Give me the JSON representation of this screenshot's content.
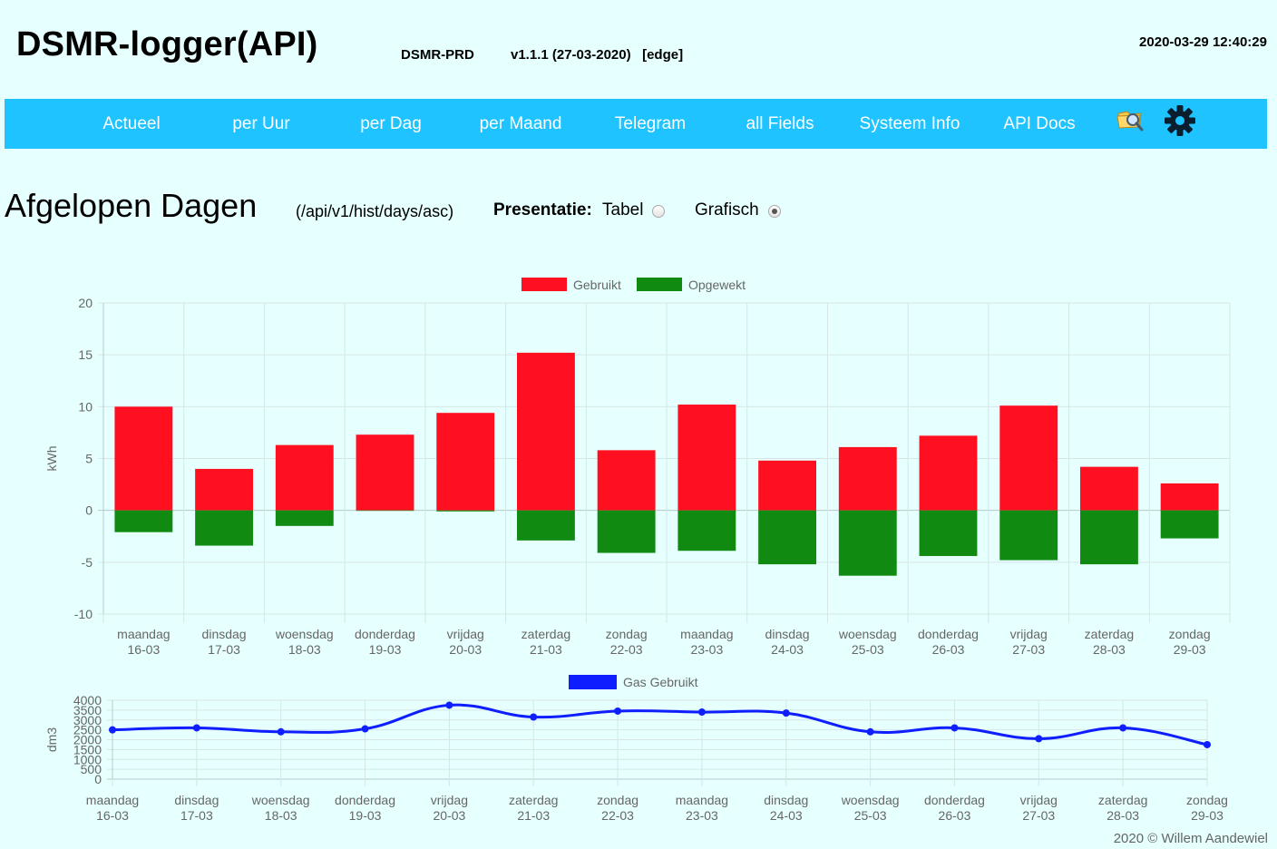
{
  "header": {
    "title": "DSMR-logger(API)",
    "hostname": "DSMR-PRD",
    "version": "v1.1.1 (27-03-2020)   [edge]",
    "clock": "2020-03-29 12:40:29"
  },
  "nav": {
    "items": [
      "Actueel",
      "per Uur",
      "per Dag",
      "per Maand",
      "Telegram",
      "all Fields",
      "Systeem Info",
      "API Docs"
    ],
    "icons": [
      "file-search-icon",
      "gear-icon"
    ]
  },
  "page": {
    "title": "Afgelopen Dagen",
    "endpoint": "(/api/v1/hist/days/asc)",
    "presentation_label": "Presentatie:",
    "options": [
      {
        "label": "Tabel",
        "selected": false
      },
      {
        "label": "Grafisch",
        "selected": true
      }
    ]
  },
  "chart_data": [
    {
      "type": "bar",
      "ylabel": "kWh",
      "ylim": [
        -10,
        20
      ],
      "yticks": [
        20,
        15,
        10,
        5,
        0,
        -5,
        -10
      ],
      "grid": true,
      "legend": "top-center",
      "categories": [
        [
          "maandag",
          "16-03"
        ],
        [
          "dinsdag",
          "17-03"
        ],
        [
          "woensdag",
          "18-03"
        ],
        [
          "donderdag",
          "19-03"
        ],
        [
          "vrijdag",
          "20-03"
        ],
        [
          "zaterdag",
          "21-03"
        ],
        [
          "zondag",
          "22-03"
        ],
        [
          "maandag",
          "23-03"
        ],
        [
          "dinsdag",
          "24-03"
        ],
        [
          "woensdag",
          "25-03"
        ],
        [
          "donderdag",
          "26-03"
        ],
        [
          "vrijdag",
          "27-03"
        ],
        [
          "zaterdag",
          "28-03"
        ],
        [
          "zondag",
          "29-03"
        ]
      ],
      "series": [
        {
          "name": "Gebruikt",
          "color": "#ff1021",
          "values": [
            10.0,
            4.0,
            6.3,
            7.3,
            9.4,
            15.2,
            5.8,
            10.2,
            4.8,
            6.1,
            7.2,
            10.1,
            4.2,
            2.6
          ]
        },
        {
          "name": "Opgewekt",
          "color": "#108a10",
          "values": [
            -2.1,
            -3.4,
            -1.5,
            0,
            -0.1,
            -2.9,
            -4.1,
            -3.9,
            -5.2,
            -6.3,
            -4.4,
            -4.8,
            -5.2,
            -2.7
          ]
        }
      ]
    },
    {
      "type": "line",
      "ylabel": "dm3",
      "ylim": [
        0,
        4000
      ],
      "yticks": [
        4000,
        3500,
        3000,
        2500,
        2000,
        1500,
        1000,
        500,
        0
      ],
      "grid": true,
      "legend": "top-center",
      "categories": [
        [
          "maandag",
          "16-03"
        ],
        [
          "dinsdag",
          "17-03"
        ],
        [
          "woensdag",
          "18-03"
        ],
        [
          "donderdag",
          "19-03"
        ],
        [
          "vrijdag",
          "20-03"
        ],
        [
          "zaterdag",
          "21-03"
        ],
        [
          "zondag",
          "22-03"
        ],
        [
          "maandag",
          "23-03"
        ],
        [
          "dinsdag",
          "24-03"
        ],
        [
          "woensdag",
          "25-03"
        ],
        [
          "donderdag",
          "26-03"
        ],
        [
          "vrijdag",
          "27-03"
        ],
        [
          "zaterdag",
          "28-03"
        ],
        [
          "zondag",
          "29-03"
        ]
      ],
      "series": [
        {
          "name": "Gas Gebruikt",
          "color": "#0e1eff",
          "values": [
            2500,
            2600,
            2400,
            2550,
            3750,
            3150,
            3450,
            3400,
            3350,
            2400,
            2600,
            2050,
            2600,
            1750
          ]
        }
      ]
    }
  ],
  "footer": {
    "copyright": "2020 © Willem Aandewiel"
  }
}
